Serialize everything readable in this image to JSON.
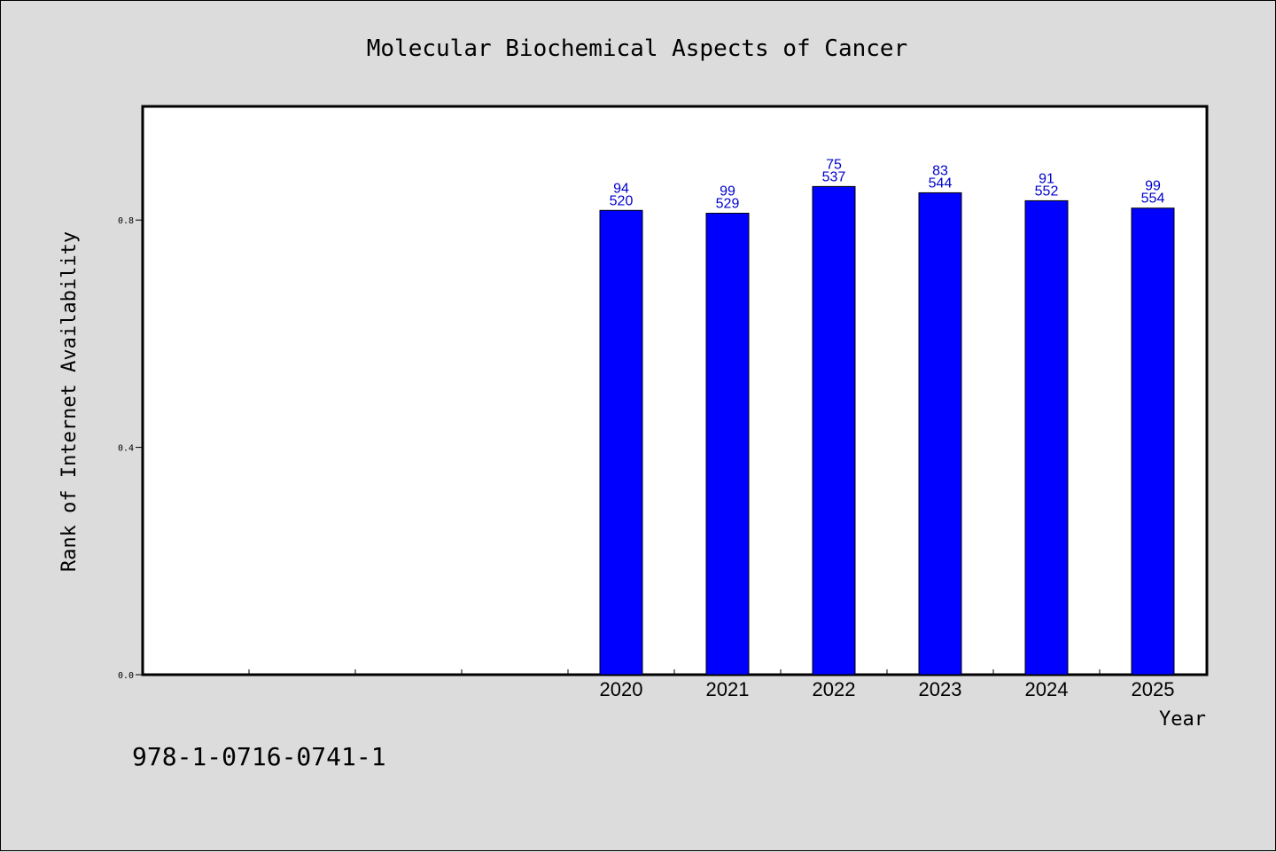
{
  "chart_data": {
    "type": "bar",
    "title": "Molecular Biochemical Aspects of Cancer",
    "xlabel": "Year",
    "ylabel": "Rank of Internet Availability",
    "footer_text": "978-1-0716-0741-1",
    "categories": [
      "2020",
      "2021",
      "2022",
      "2023",
      "2024",
      "2025"
    ],
    "values": [
      0.817,
      0.812,
      0.859,
      0.848,
      0.834,
      0.821
    ],
    "bar_labels_top": [
      "94",
      "99",
      "75",
      "83",
      "91",
      "99"
    ],
    "bar_labels_bottom": [
      "520",
      "529",
      "537",
      "544",
      "552",
      "554"
    ],
    "ylim": [
      0,
      1.0
    ],
    "yticks": [
      0.0,
      0.4,
      0.8
    ],
    "ytick_labels": [
      "0.0",
      "0.4",
      "0.8"
    ],
    "empty_leading_slots": 4,
    "grid": false,
    "colors": {
      "background": "#dcdcdc",
      "plot_area": "#ffffff",
      "bar_fill": "#0000ff",
      "bar_label": "#0000cc",
      "axis": "#000000"
    }
  }
}
